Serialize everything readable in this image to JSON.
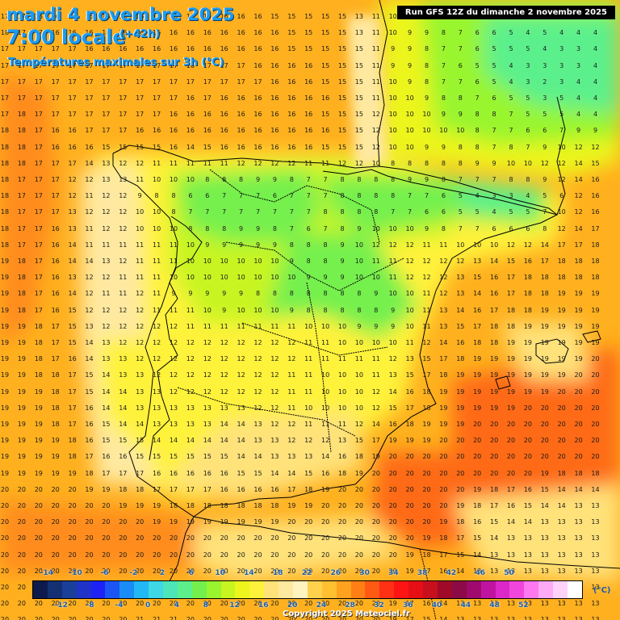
{
  "header": {
    "date": "mardi 4 novembre 2025",
    "time": "7:00 locale",
    "offset": "(+42h)",
    "parameter": "Températures maximales sur 3h (°C)",
    "run": "Run GFS 12Z du dimanche 2 novembre 2025"
  },
  "legend": {
    "unit": "(°C)",
    "top_labels": [
      "-14",
      "-10",
      "-6",
      "-2",
      "2",
      "6",
      "10",
      "14",
      "18",
      "22",
      "26",
      "30",
      "34",
      "38",
      "42",
      "46",
      "50"
    ],
    "bottom_labels": [
      "-12",
      "-8",
      "-4",
      "0",
      "4",
      "8",
      "12",
      "16",
      "20",
      "24",
      "28",
      "32",
      "36",
      "40",
      "44",
      "48",
      "52"
    ],
    "colors": [
      "#0d1a4d",
      "#143072",
      "#1a3f99",
      "#1f33c8",
      "#1e22f5",
      "#1c55f5",
      "#1a8cf5",
      "#22b8f5",
      "#3fd6e6",
      "#4de6b8",
      "#5cf08c",
      "#74f04e",
      "#99f52e",
      "#c8f520",
      "#ecf51c",
      "#fff23a",
      "#ffe27a",
      "#ffe9a0",
      "#fff3c0",
      "#ffd24d",
      "#ffc030",
      "#ffa21e",
      "#ff7f14",
      "#ff5a14",
      "#ff3014",
      "#ff1414",
      "#e60f14",
      "#c80f1e",
      "#a00a28",
      "#8c0a46",
      "#a00a6e",
      "#c014a0",
      "#dc28c8",
      "#f046dc",
      "#ff78f0",
      "#ffaaf5",
      "#ffd2fa",
      "#ffffff"
    ]
  },
  "copyright": "Copyright 2025 Meteociel.fr",
  "temperature_grid": {
    "rows": [
      "17 17 16 16 16 16 16 16 16 16 16 16 16 16 16 16 15 15 15 15 15 13 11 10 9 8 8 6 6 5 4 5 5 4 4 4",
      "18 17 17 16 16 16 16 16 16 16 16 16 16 16 16 16 16 15 15 15 15 13 11 10 9 9 8 7 6 6 5 4 5 4 4 4",
      "17 17 17 17 17 16 16 16 16 16 16 16 16 16 16 16 16 15 15 15 15 15 11 9 9 8 7 7 6 5 5 5 4 3 3 4",
      "17 17 17 17 17 17 17 17 17 17 17 16 17 17 17 16 16 16 16 15 15 15 11 9 9 8 7 6 5 5 4 3 3 3 3 4",
      "17 17 17 17 17 17 17 17 17 17 17 17 17 17 17 17 16 16 16 15 15 15 11 10 9 8 7 7 6 5 4 3 2 3 4 4",
      "17 17 17 17 17 17 17 17 17 17 17 16 17 16 16 16 16 16 16 16 15 15 11 10 10 9 8 8 7 6 5 5 3 5 4 4",
      "17 18 17 17 17 17 17 17 17 17 16 16 16 16 16 16 16 16 16 15 15 15 12 10 10 10 9 9 8 8 7 5 5 5 4 4",
      "18 18 17 16 16 17 17 17 16 16 16 16 16 16 16 16 16 16 16 16 15 15 12 10 10 10 10 10 8 7 7 6 6 7 9 9",
      "18 18 17 16 16 16 15 15 15 15 16 14 15 16 16 16 16 16 16 15 15 15 12 10 10 9 9 8 8 7 8 7 9 10 12 12",
      "18 18 17 17 17 14 13 12 12 11 11 11 11 11 12 12 12 12 11 11 12 12 10 8 8 8 8 8 9 9 10 10 12 12 14 15",
      "18 17 17 17 12 12 13 13 11 10 10 10 8 8 8 9 9 8 7 7 8 8 8 8 9 9 8 7 7 7 8 8 9 12 14 16",
      "18 17 17 17 12 11 12 12 9 8 8 6 6 7 7 7 6 7 7 7 8 8 8 8 7 7 6 5 4 3 3 4 5 6 12 16",
      "18 17 17 17 13 12 12 12 10 10 8 7 7 7 7 7 7 7 7 8 8 8 8 7 7 6 6 5 5 4 5 5 7 10 12 16",
      "18 17 17 16 13 11 12 12 10 10 10 8 8 8 9 9 8 7 6 7 8 9 10 10 10 9 8 7 7 6 6 6 8 12 14 17",
      "18 17 17 16 14 11 11 11 11 11 11 10 9 9 9 9 9 8 8 8 9 10 12 12 12 11 11 10 10 10 12 12 14 17 17 18",
      "19 18 17 16 14 14 13 12 11 11 11 10 10 10 10 10 10 9 8 8 9 10 11 11 12 12 12 12 13 14 15 16 17 18 18 18",
      "19 18 17 16 13 12 12 11 11 11 10 10 10 10 10 10 10 10 9 9 9 10 10 11 12 12 12 13 15 16 17 18 18 18 18 18",
      "19 18 17 16 14 12 11 11 12 11 9 9 9 9 9 8 8 8 8 8 8 8 9 10 10 11 12 13 14 16 17 18 18 19 19 19",
      "19 18 17 16 15 12 12 12 12 11 11 11 10 9 10 10 10 9 8 8 8 8 8 9 10 11 13 14 16 17 18 18 19 19 19 19",
      "19 19 18 17 15 13 12 12 12 12 12 11 11 11 11 11 11 11 10 10 10 9 9 9 10 11 13 15 17 18 18 19 19 19 19 19",
      "19 19 18 17 15 14 13 12 12 12 12 12 12 12 12 12 12 12 11 11 10 10 10 10 11 12 14 16 18 18 19 19 19 19 19 19",
      "19 19 18 17 16 14 13 13 12 12 12 12 12 12 12 12 12 12 11 11 11 11 11 12 13 15 17 18 19 19 19 19 19 19 19 20",
      "19 19 18 18 17 15 14 13 13 12 12 12 12 12 12 12 12 11 11 10 10 10 11 13 15 17 18 19 19 19 19 19 19 19 20 20",
      "19 19 19 18 17 15 14 14 13 13 12 12 12 12 12 12 12 11 11 10 10 10 12 14 16 18 19 19 19 19 19 19 19 20 20 20",
      "19 19 19 18 17 16 14 14 13 13 13 13 13 13 13 12 12 11 10 10 10 10 12 15 17 18 19 19 19 19 19 20 20 20 20 20",
      "19 19 19 18 17 16 15 14 14 13 13 13 13 14 14 13 12 12 11 11 11 12 14 16 18 19 19 19 20 20 20 20 20 20 20 20",
      "19 19 19 19 18 16 15 15 15 14 14 14 14 14 14 13 13 12 12 12 13 15 17 19 19 19 20 20 20 20 20 20 20 20 20 20",
      "19 19 19 19 18 17 16 16 15 15 15 15 15 15 14 14 13 13 13 14 16 18 19 20 20 20 20 20 20 20 20 20 20 20 20 20",
      "19 19 19 19 19 18 17 17 17 16 16 16 16 16 15 15 14 14 15 16 18 19 20 20 20 20 20 20 20 20 20 20 19 18 18 18",
      "20 20 20 20 20 19 19 18 18 17 17 17 17 16 16 16 16 17 18 19 20 20 20 20 20 20 20 20 19 18 17 16 15 14 14 14",
      "20 20 20 20 20 20 20 19 19 19 18 18 18 18 18 18 18 19 19 20 20 20 20 20 20 20 20 19 18 17 16 15 14 14 13 13",
      "20 20 20 20 20 20 20 20 20 19 19 19 19 19 19 19 19 20 20 20 20 20 20 20 20 20 19 18 16 15 14 14 13 13 13 13",
      "20 20 20 20 20 20 20 20 20 20 20 20 20 20 20 20 20 20 20 20 20 20 20 20 20 19 18 17 15 14 13 13 13 13 13 13",
      "20 20 20 20 20 20 20 20 20 20 20 20 20 20 20 20 20 20 20 20 20 20 20 20 19 18 17 15 14 13 13 13 13 13 13 13",
      "20 20 20 20 20 20 20 20 20 20 20 20 20 20 20 20 20 20 20 20 20 20 20 20 19 17 16 14 13 13 13 13 13 13 13 13",
      "20 20 20 20 20 20 20 20 20 20 20 20 20 20 20 20 20 20 20 20 20 20 20 19 18 16 15 14 13 13 13 13 13 13 13 13",
      "20 20 20 20 20 20 20 20 20 20 20 20 20 20 20 20 20 20 20 20 20 20 20 19 17 16 14 13 13 13 13 13 13 13 13 13",
      "20 20 20 20 20 20 20 20 21 21 21 20 20 20 20 20 20 20 20 20 20 20 20 19 17 15 14 13 13 13 13 13 13 13 13 13"
    ]
  }
}
